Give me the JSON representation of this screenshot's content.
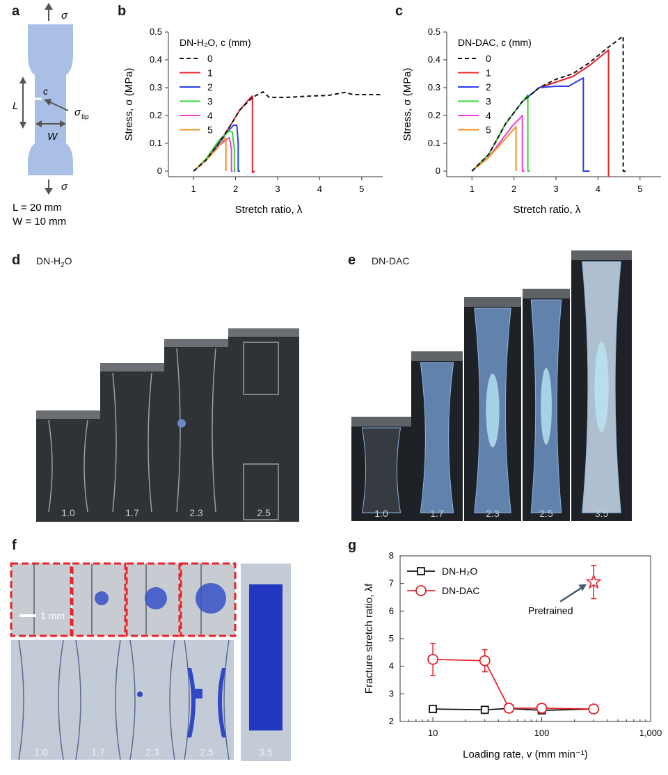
{
  "panels": {
    "a": {
      "label": "a",
      "sigma": "σ",
      "c": "c",
      "L": "L",
      "W": "W",
      "sigma_tip": "σ",
      "tip_sub": "tip",
      "dim_L": "L = 20 mm",
      "dim_W": "W = 10 mm"
    },
    "b": {
      "label": "b"
    },
    "c": {
      "label": "c"
    },
    "d": {
      "label": "d",
      "title_main": "DN-H",
      "title_sub": "2",
      "title_end": "O",
      "stretch_labels": [
        "1.0",
        "1.7",
        "2.3",
        "2.5"
      ]
    },
    "e": {
      "label": "e",
      "title": "DN-DAC",
      "stretch_labels": [
        "1.0",
        "1.7",
        "2.3",
        "2.5",
        "3.5"
      ]
    },
    "f": {
      "label": "f",
      "scale_bar": "1 mm",
      "stretch_labels": [
        "1.0",
        "1.7",
        "2.3",
        "2.5",
        "3.5"
      ]
    },
    "g": {
      "label": "g"
    }
  },
  "colors": {
    "c0": "#111111",
    "c1": "#e8222a",
    "c2": "#2a3cf0",
    "c3": "#35d235",
    "c4": "#f03cd6",
    "c5": "#f5911e",
    "specimen": "#a9bfe6",
    "dac": "#e8222a"
  },
  "chart_data": [
    {
      "id": "b",
      "type": "line",
      "legend_title": "DN-H₂O, c (mm)",
      "xlabel": "Stretch ratio, λ",
      "ylabel": "Stress, σ (MPa)",
      "xlim": [
        0.4,
        5.5
      ],
      "ylim": [
        -0.02,
        0.5
      ],
      "xticks": [
        "1",
        "2",
        "3",
        "4",
        "5"
      ],
      "yticks": [
        "0",
        "0.1",
        "0.2",
        "0.3",
        "0.4",
        "0.5"
      ],
      "series": [
        {
          "name": "0",
          "color": "#111111",
          "dashed": true,
          "x": [
            1.0,
            1.3,
            1.6,
            1.9,
            2.1,
            2.4,
            2.65,
            2.8,
            3.2,
            3.8,
            4.2,
            4.6,
            4.8,
            5.2,
            5.5
          ],
          "y": [
            0,
            0.04,
            0.1,
            0.17,
            0.22,
            0.265,
            0.285,
            0.265,
            0.265,
            0.27,
            0.272,
            0.283,
            0.275,
            0.275,
            0.275
          ]
        },
        {
          "name": "1",
          "color": "#e8222a",
          "x": [
            1.0,
            1.3,
            1.6,
            1.9,
            2.1,
            2.3,
            2.4,
            2.4,
            2.45
          ],
          "y": [
            0,
            0.04,
            0.1,
            0.17,
            0.22,
            0.255,
            0.27,
            -0.005,
            0.0
          ]
        },
        {
          "name": "2",
          "color": "#2a3cf0",
          "x": [
            1.0,
            1.3,
            1.6,
            1.8,
            1.95,
            2.03,
            2.06,
            2.06,
            2.1
          ],
          "y": [
            0,
            0.04,
            0.1,
            0.14,
            0.165,
            0.165,
            0.1,
            0.0,
            0.0
          ]
        },
        {
          "name": "3",
          "color": "#35d235",
          "x": [
            1.0,
            1.3,
            1.6,
            1.85,
            1.92,
            1.97,
            1.97,
            2.0
          ],
          "y": [
            0,
            0.045,
            0.11,
            0.145,
            0.14,
            0.08,
            0.0,
            0.0
          ]
        },
        {
          "name": "4",
          "color": "#f03cd6",
          "x": [
            1.0,
            1.3,
            1.55,
            1.75,
            1.85,
            1.9,
            1.9,
            1.93
          ],
          "y": [
            0,
            0.04,
            0.085,
            0.11,
            0.12,
            0.08,
            0.0,
            0.0
          ]
        },
        {
          "name": "5",
          "color": "#f5911e",
          "x": [
            1.0,
            1.3,
            1.55,
            1.75,
            1.77,
            1.77
          ],
          "y": [
            0,
            0.04,
            0.08,
            0.12,
            0.115,
            0.0
          ]
        }
      ]
    },
    {
      "id": "c",
      "type": "line",
      "legend_title": "DN-DAC, c (mm)",
      "xlabel": "Stretch ratio, λ",
      "ylabel": "Stress, σ (MPa)",
      "xlim": [
        0.4,
        5.5
      ],
      "ylim": [
        -0.02,
        0.5
      ],
      "xticks": [
        "1",
        "2",
        "3",
        "4",
        "5"
      ],
      "yticks": [
        "0",
        "0.1",
        "0.2",
        "0.3",
        "0.4",
        "0.5"
      ],
      "series": [
        {
          "name": "0",
          "color": "#111111",
          "dashed": true,
          "x": [
            1.0,
            1.4,
            1.8,
            2.2,
            2.6,
            3.0,
            3.4,
            3.8,
            4.2,
            4.6,
            4.6,
            4.7
          ],
          "y": [
            0,
            0.06,
            0.17,
            0.25,
            0.3,
            0.33,
            0.35,
            0.39,
            0.44,
            0.485,
            0.0,
            0.0
          ]
        },
        {
          "name": "1",
          "color": "#e8222a",
          "x": [
            1.0,
            1.4,
            1.8,
            2.2,
            2.6,
            3.0,
            3.4,
            3.8,
            4.25,
            4.25
          ],
          "y": [
            0,
            0.06,
            0.17,
            0.25,
            0.3,
            0.32,
            0.34,
            0.38,
            0.435,
            -0.02
          ]
        },
        {
          "name": "2",
          "color": "#2a3cf0",
          "x": [
            1.0,
            1.4,
            1.8,
            2.2,
            2.6,
            3.0,
            3.3,
            3.65,
            3.65,
            3.8
          ],
          "y": [
            0,
            0.06,
            0.17,
            0.25,
            0.3,
            0.305,
            0.305,
            0.335,
            0.0,
            0.0
          ]
        },
        {
          "name": "3",
          "color": "#35d235",
          "x": [
            1.0,
            1.4,
            1.8,
            2.1,
            2.33,
            2.33,
            2.38
          ],
          "y": [
            0,
            0.06,
            0.17,
            0.23,
            0.275,
            0.0,
            0.0
          ]
        },
        {
          "name": "4",
          "color": "#f03cd6",
          "x": [
            1.0,
            1.4,
            1.7,
            1.95,
            2.2,
            2.2,
            2.25
          ],
          "y": [
            0,
            0.05,
            0.11,
            0.16,
            0.2,
            0.0,
            0.0
          ]
        },
        {
          "name": "5",
          "color": "#f5911e",
          "x": [
            1.0,
            1.4,
            1.7,
            2.05,
            2.05
          ],
          "y": [
            0,
            0.05,
            0.1,
            0.16,
            0.0
          ]
        }
      ]
    },
    {
      "id": "g",
      "type": "scatter",
      "xlabel": "Loading rate, v (mm min⁻¹)",
      "ylabel": "Fracture stretch ratio, λf",
      "xscale": "log",
      "xlim": [
        5,
        1000
      ],
      "ylim": [
        2,
        8
      ],
      "xticks": [
        "10",
        "100",
        "1,000"
      ],
      "yticks": [
        "2",
        "3",
        "4",
        "5",
        "6",
        "7",
        "8"
      ],
      "annotation": "Pretrained",
      "series": [
        {
          "name": "DN-H₂O",
          "color": "#111111",
          "marker": "square",
          "x": [
            10,
            30,
            50,
            100,
            300
          ],
          "y": [
            2.45,
            2.42,
            2.47,
            2.4,
            2.45
          ],
          "err": [
            0.08,
            0.08,
            0.1,
            0.08,
            0.1
          ]
        },
        {
          "name": "DN-DAC",
          "color": "#e8222a",
          "marker": "circle",
          "x": [
            10,
            30,
            50,
            100,
            300
          ],
          "y": [
            4.25,
            4.2,
            2.48,
            2.48,
            2.45
          ],
          "err": [
            0.58,
            0.4,
            0.1,
            0.12,
            0.12
          ]
        },
        {
          "name": "Pretrained",
          "color": "#e8222a",
          "marker": "star",
          "x": [
            300
          ],
          "y": [
            7.05
          ],
          "err": [
            0.6
          ]
        }
      ]
    }
  ]
}
